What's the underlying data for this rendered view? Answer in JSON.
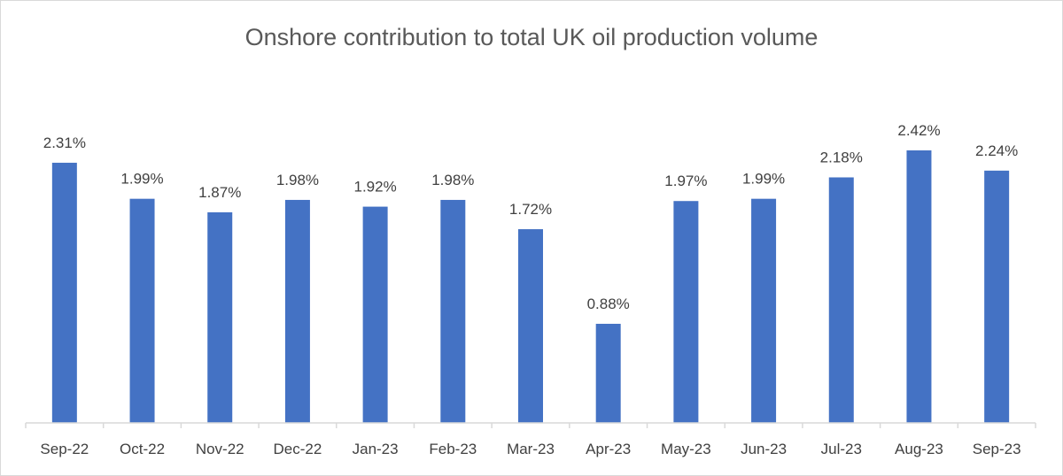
{
  "chart_data": {
    "type": "bar",
    "title": "Onshore contribution to total UK oil production volume",
    "xlabel": "",
    "ylabel": "",
    "categories": [
      "Sep-22",
      "Oct-22",
      "Nov-22",
      "Dec-22",
      "Jan-23",
      "Feb-23",
      "Mar-23",
      "Apr-23",
      "May-23",
      "Jun-23",
      "Jul-23",
      "Aug-23",
      "Sep-23"
    ],
    "values": [
      2.31,
      1.99,
      1.87,
      1.98,
      1.92,
      1.98,
      1.72,
      0.88,
      1.97,
      1.99,
      2.18,
      2.42,
      2.24
    ],
    "labels": [
      "2.31%",
      "1.99%",
      "1.87%",
      "1.98%",
      "1.92%",
      "1.98%",
      "1.72%",
      "0.88%",
      "1.97%",
      "1.99%",
      "2.18%",
      "2.42%",
      "2.24%"
    ],
    "unit": "%",
    "ylim": [
      0,
      2.6
    ],
    "grid": false,
    "legend": "none",
    "bar_color": "#4472c4"
  }
}
